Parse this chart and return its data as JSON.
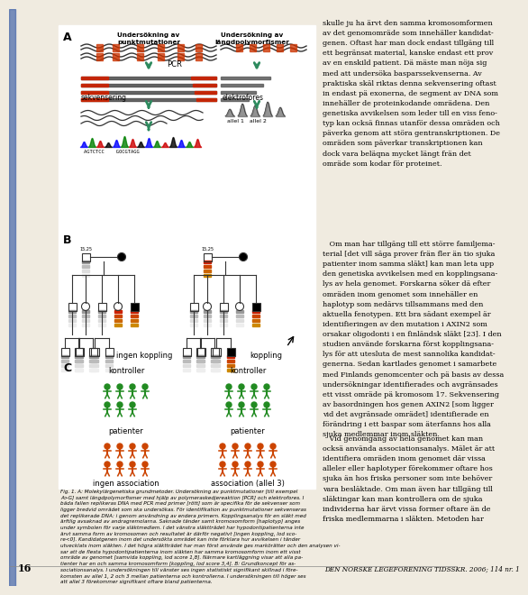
{
  "bg_color": "#f0ebe0",
  "white": "#ffffff",
  "black": "#000000",
  "red": "#cc2200",
  "green_person": "#228B22",
  "orange_person": "#cc4400",
  "teal_arrow": "#2d8a5e",
  "gray_dna": "#555555",
  "page_num": "16",
  "journal_line": "DEN NORSKE LEGEFORENING TIDSSKR. 2006; 114 nr. 1",
  "panel_a": "A",
  "panel_b": "B",
  "panel_c": "C",
  "punkt_label": "Undersökning av\npunktmutationer",
  "langd_label": "Undersökning av\nlängdpolymorfismer",
  "pcr_label": "PCR",
  "sekvensering_label": "sekvensering",
  "elektrofores_label": "elektrofores",
  "ingen_koppling": "ingen koppling",
  "koppling": "koppling",
  "ingen_association": "ingen association",
  "association_label": "association (allel 3)",
  "kontroller_label": "kontroller",
  "patienter_label": "patienter",
  "seq_text": "AGTCTCC    GOCGTAGG",
  "allel_text": "allel 1   allel 2",
  "right_col_text1": "skulle ju ha ärvt den samma kromosomformen\nav det genomomräde som innehäller kandidat-\ngenen. Oftast har man dock endast tillgäng till\nett begränsat material, kanske endast ett prov\nav en enskild patient. Dä mäste man nöja sig\nmed att undersöka basparssekvenserna. Av\npraktiska skäl riktas denna sekvensering oftast\nin endast pä exonerna, de segment av DNA som\ninnehäller de proteinkodande omrädena. Den\ngenetiska avvikelsen som leder till en viss feno-\ntyp kan ocksä finnas utanför dessa omräden och\npäverka genom att störa gentranskriptionen. De\nomräden som päverkar transkriptionen kan\ndock vara beläqna mycket längt frän det\nomräde som kodar för proteinet.",
  "right_col_text2": "   Om man har tillgäng till ett större familjema-\nterial [det vill säga prover frän fler än tio sjuka\npatienter inom samma släkt] kan man leta upp\nden genetiska avvikelsen med en kopplingsana-\nlys av hela genomet. Forskarna söker dä efter\nomräden inom genomet som innehäller en\nhaplotyp som nedärvs tillsammans med den\naktuella fenotypen. Ett bra sädant exempel är\nidentifieringen av den mutation i AXIN2 som\norsakar oligodonti i en finländsk släkt [23]. I den\nstudien använde forskarna först kopplingsana-\nlys för att utesluta de mest sannolika kandidat-\ngenerna. Sedan kartlades genomet i samarbete\nmed Finlands genomcenter och pä basis av dessa\nundersökningar identifierades och avgränsades\nett visst omräde pä kromosom 17. Sekvensering\nav basordningen hos genen AXIN2 [som ligger\nvid det avgränsade omrädet] identifierade en\nförändring i ett baspar som äterfanns hos alla\nsjuka medlemmar inom släkten.",
  "right_col_text3": "   Vid genomgäng av hela genomet kan man\nocksä använda associationsanalys. Mälet är att\nidentifiera omräden inom genomet där vissa\nalleler eller haplotyper förekommer oftare hos\nsjuka än hos friska personer som inte behöver\nvara besläktade. Om man även har tillgäng till\nsläktingar kan man kontrollera om de sjuka\nindividerna har ärvt vissa former oftare än de\nfriska medlemmarna i släkten. Metoden har",
  "caption_text": "Fig. 1. A: Molekylärgenetiska grundmetoder. Undersökning av punktmutationer [till exempel\nA>G] samt längdpolymorfismer med hjälp av polymeraskedjereaktion [PCR] och elektrofores. I\nbäda fallen replikeras DNA med PCR med primer [rött] som är specifika för de sekvenser som\nligger bredvid omrädet som ska undersökas. För identifikation av punktmutationer sekvenseras\ndet replikerade DNA: i genom användning av endera primern. Kopplingsanalys för en släkt med\närftlig avsaknad av andragremolarna. Saknade tänder samt kromosomform [haplotyp] anges\nunder symbolen för varje släktmedlem. I det vänstra släktträdet har hypodontipatienterna inte\närvt samma form av kromosomen och resultatet är därför negativt [ingen koppling, lod sco-\nre<0]. Kandidatgenen inom det undersökta omrädet kan inte förklara hur avvikelsen i tänder\nutvecklats inom släkten. I det högra släktträdet har man först använde ges markörätter och den analysen vi-\nsar att de flesta hypodontipatienterna inom släkten har samma kromosomform inom ett visst\nomräde av genomet [samvida koppling, lod score 1,8]. Närmare kartläggning visar att alla pa-\ntienter har en och samma kromosomform [koppling, lod score 3,4]. B: Grundkoncept för as-\nsociationsanalys. I undersökningen till vänster ses ingen statistiskt signifikant skillnad i före-\nkomsten av allel 1, 2 och 3 mellan patienterna och kontrollerna. I undersökningen till höger ses\natt allel 3 förekommer signifikant oftare bland patienterna."
}
